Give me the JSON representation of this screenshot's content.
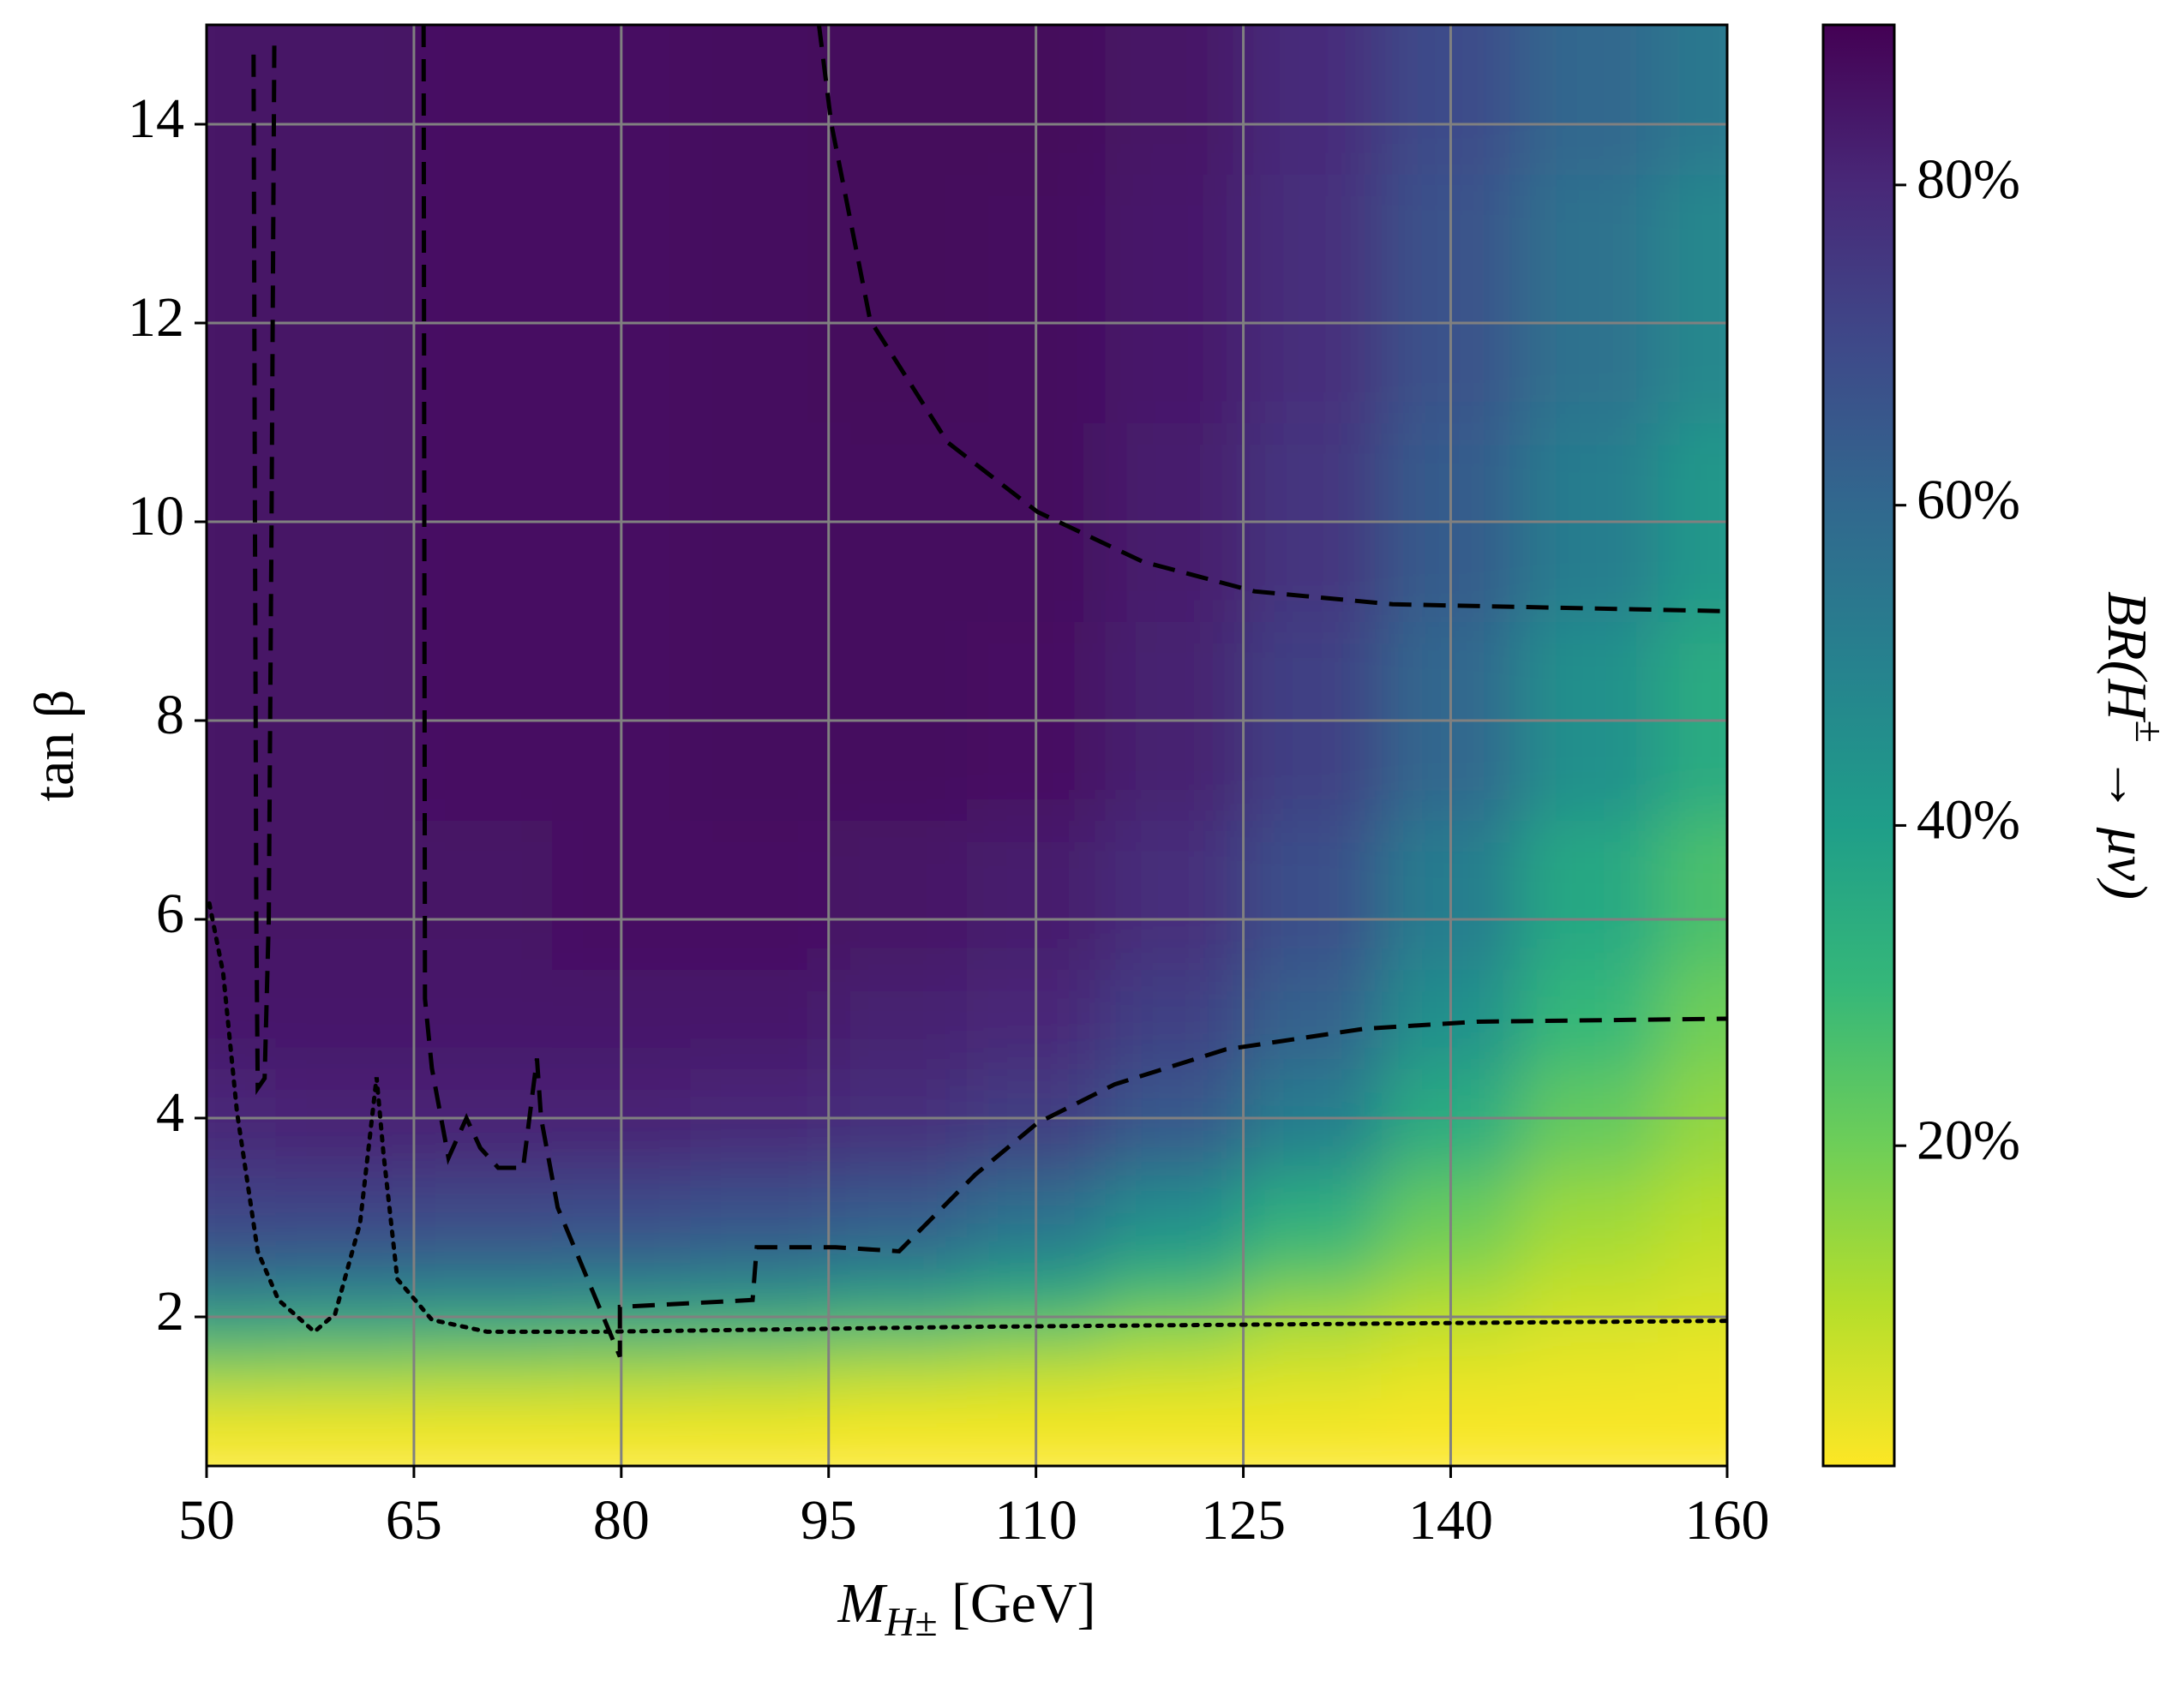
{
  "chart_data": {
    "type": "heatmap",
    "x_label": [
      "M",
      "H±",
      " [GeV]"
    ],
    "y_label": "tan β",
    "colorbar_label": [
      "BR(H",
      "±",
      " → μν)"
    ],
    "colormap": "viridis_r",
    "xlim": [
      50,
      160
    ],
    "ylim": [
      0.5,
      15
    ],
    "clim": [
      0,
      90
    ],
    "xticks": [
      50,
      65,
      80,
      95,
      110,
      125,
      140,
      160
    ],
    "yticks": [
      2,
      4,
      6,
      8,
      10,
      12,
      14
    ],
    "cticks": [
      {
        "value": 20,
        "label": "20%"
      },
      {
        "value": 40,
        "label": "40%"
      },
      {
        "value": 60,
        "label": "60%"
      },
      {
        "value": 80,
        "label": "80%"
      }
    ],
    "grid": true,
    "grid_color": "#808080",
    "x": [
      50,
      60,
      70,
      80,
      90,
      100,
      110,
      120,
      130,
      140,
      150,
      160
    ],
    "y": [
      0.5,
      1,
      1.5,
      2,
      2.5,
      3,
      4,
      5,
      6,
      8,
      10,
      12,
      15
    ],
    "z": [
      [
        0,
        0,
        0,
        0,
        0,
        0,
        0,
        0,
        0,
        0,
        0,
        0
      ],
      [
        3,
        3,
        3,
        3,
        3,
        2,
        2,
        2,
        2,
        1,
        1,
        1
      ],
      [
        18,
        17,
        16,
        15,
        14,
        12,
        10,
        8,
        6,
        4,
        3,
        2
      ],
      [
        42,
        41,
        40,
        39,
        37,
        33,
        28,
        20,
        13,
        9,
        6,
        5
      ],
      [
        62,
        61,
        60,
        59,
        57,
        53,
        46,
        36,
        25,
        16,
        10,
        7
      ],
      [
        72,
        72,
        71,
        70,
        68,
        65,
        58,
        47,
        35,
        22,
        14,
        10
      ],
      [
        80,
        81,
        81,
        81,
        80,
        78,
        74,
        65,
        52,
        35,
        22,
        15
      ],
      [
        84,
        84,
        84,
        84,
        84,
        82,
        80,
        73,
        62,
        45,
        30,
        20
      ],
      [
        85,
        85,
        85,
        86,
        86,
        85,
        83,
        78,
        68,
        52,
        36,
        26
      ],
      [
        85,
        85,
        86,
        86,
        87,
        87,
        86,
        82,
        73,
        60,
        45,
        35
      ],
      [
        85,
        85,
        86,
        86,
        87,
        87,
        87,
        83,
        76,
        64,
        52,
        42
      ],
      [
        85,
        85,
        86,
        86,
        87,
        88,
        87,
        84,
        78,
        67,
        56,
        48
      ],
      [
        85,
        85,
        86,
        86,
        87,
        88,
        88,
        85,
        79,
        69,
        60,
        54
      ]
    ],
    "lines": [
      {
        "style": "dashed",
        "color": "#000000",
        "x": [
          53.4,
          53.5,
          53.6,
          53.7,
          54.2,
          54.5,
          54.7,
          54.9
        ],
        "y": [
          14.7,
          10,
          6,
          4.3,
          4.4,
          6,
          10,
          14.8
        ]
      },
      {
        "style": "dashed",
        "color": "#000000",
        "x": [
          65.7,
          65.8,
          66.3,
          67.5,
          68.8,
          69.8,
          71.1,
          72.9,
          73.9,
          74.2,
          75.4,
          78.4,
          79.9,
          79.9,
          89.5,
          89.8,
          95.5,
          100.1,
          105.6,
          110.1,
          115.7,
          123.7,
          133.8,
          141.9,
          160
        ],
        "y": [
          15,
          5.2,
          4.5,
          3.6,
          4.0,
          3.7,
          3.5,
          3.5,
          4.6,
          4.0,
          3.1,
          2.1,
          1.6,
          2.1,
          2.17,
          2.7,
          2.7,
          2.66,
          3.43,
          3.95,
          4.34,
          4.69,
          4.9,
          4.97,
          5.0
        ]
      },
      {
        "style": "dashed",
        "color": "#000000",
        "x": [
          94.3,
          95.2,
          98,
          103.6,
          110.1,
          117.7,
          125.8,
          135.8,
          160
        ],
        "y": [
          15,
          14,
          12.03,
          10.8,
          10.1,
          9.6,
          9.3,
          9.17,
          9.1
        ]
      },
      {
        "style": "dotted",
        "color": "#000000",
        "x": [
          50.2,
          51.2,
          52.2,
          53.7,
          55.2,
          57.8,
          59.3,
          61.1,
          62.3,
          62.8,
          63.8,
          66.3,
          70.3,
          78.4,
          105.6,
          160
        ],
        "y": [
          6.16,
          5.46,
          4.06,
          2.66,
          2.17,
          1.85,
          2.03,
          2.94,
          4.41,
          3.64,
          2.38,
          1.97,
          1.85,
          1.85,
          1.9,
          1.96
        ]
      }
    ]
  }
}
